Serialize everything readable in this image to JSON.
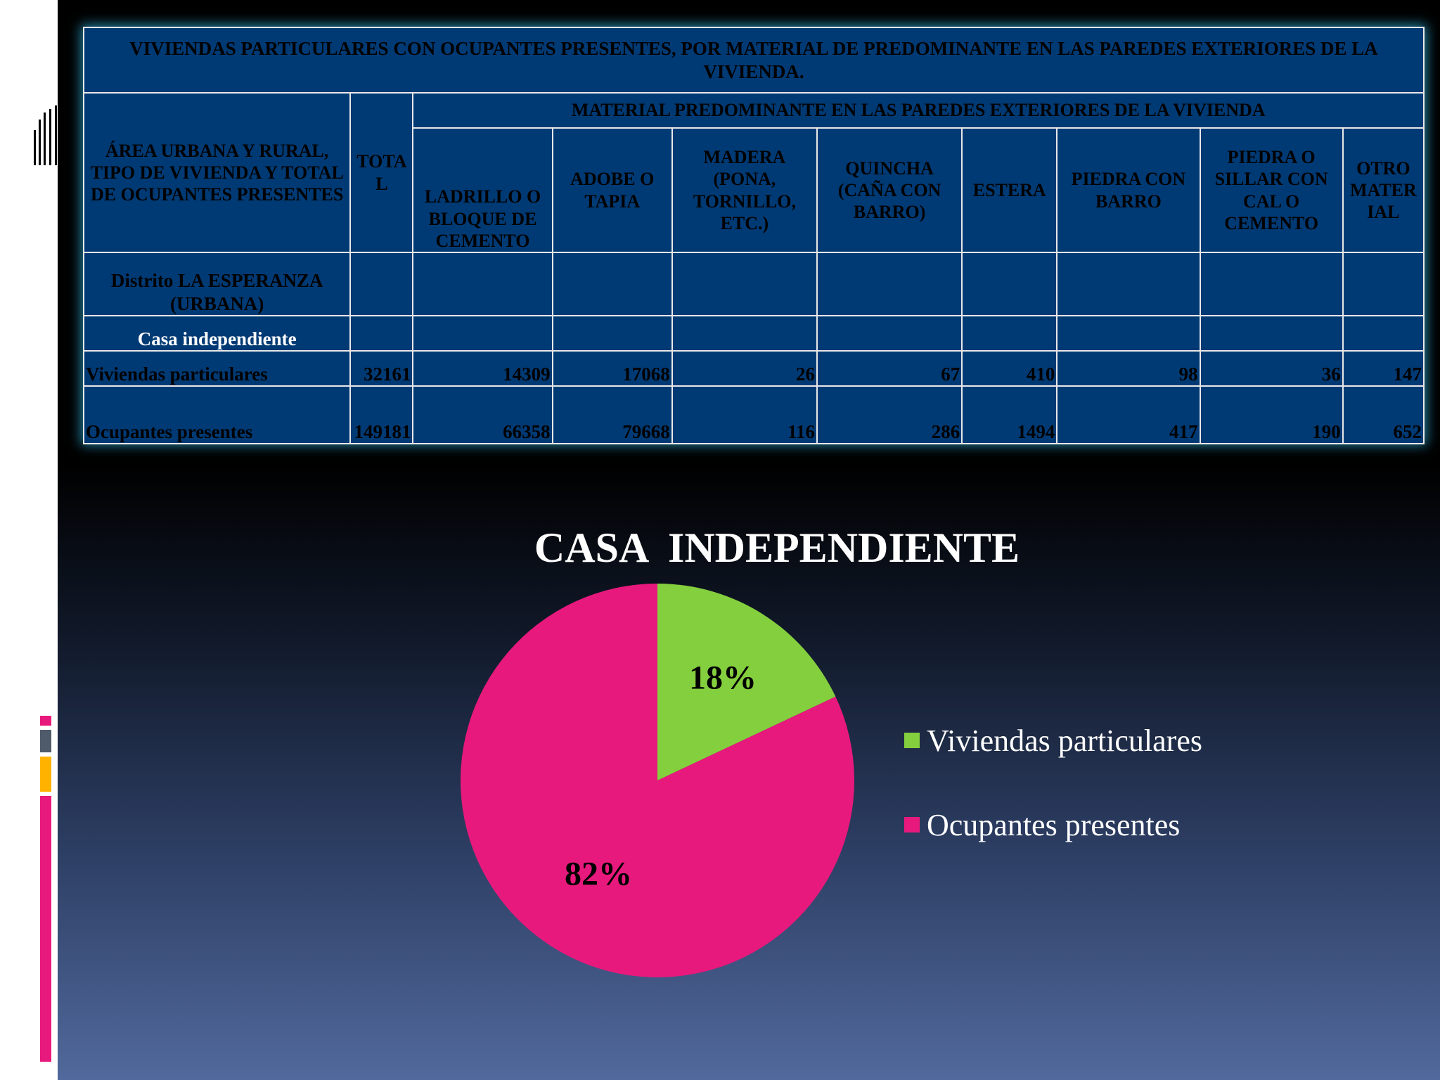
{
  "colors": {
    "table_bg": "#003a74",
    "slice_1": "#84cf3e",
    "slice_2": "#e8197d",
    "accent_pink": "#e8197d",
    "accent_gray": "#4f5a6a",
    "accent_orange": "#ffb300"
  },
  "table": {
    "title": "VIVIENDAS PARTICULARES CON OCUPANTES PRESENTES, POR MATERIAL DE PREDOMINANTE EN LAS PAREDES EXTERIORES DE LA VIVIENDA.",
    "row_header": "ÁREA URBANA Y RURAL, TIPO DE VIVIENDA Y TOTAL DE OCUPANTES PRESENTES",
    "total_header": "TOTA L",
    "group_header": "MATERIAL PREDOMINANTE EN LAS PAREDES EXTERIORES DE LA VIVIENDA",
    "columns": [
      "LADRILLO O BLOQUE DE CEMENTO",
      "ADOBE O TAPIA",
      "MADERA (PONA, TORNILLO, ETC.)",
      "QUINCHA (CAÑA CON BARRO)",
      "ESTERA",
      "PIEDRA CON BARRO",
      "PIEDRA O SILLAR CON CAL O CEMENTO",
      "OTRO MATER IAL"
    ],
    "district": "Distrito LA ESPERANZA (URBANA)",
    "section": "Casa independiente",
    "rows": [
      {
        "label": "Viviendas particulares",
        "total": "32161",
        "values": [
          "14309",
          "17068",
          "26",
          "67",
          "410",
          "98",
          "36",
          "147"
        ]
      },
      {
        "label": "Ocupantes presentes",
        "total": "149181",
        "values": [
          "66358",
          "79668",
          "116",
          "286",
          "1494",
          "417",
          "190",
          "652"
        ]
      }
    ]
  },
  "chart_data": {
    "type": "pie",
    "title": "CASA  INDEPENDIENTE",
    "categories": [
      "Viviendas particulares",
      "Ocupantes presentes"
    ],
    "values": [
      18,
      82
    ],
    "labels": [
      "18%",
      "82%"
    ],
    "colors": [
      "#84cf3e",
      "#e8197d"
    ],
    "legend_position": "right"
  }
}
